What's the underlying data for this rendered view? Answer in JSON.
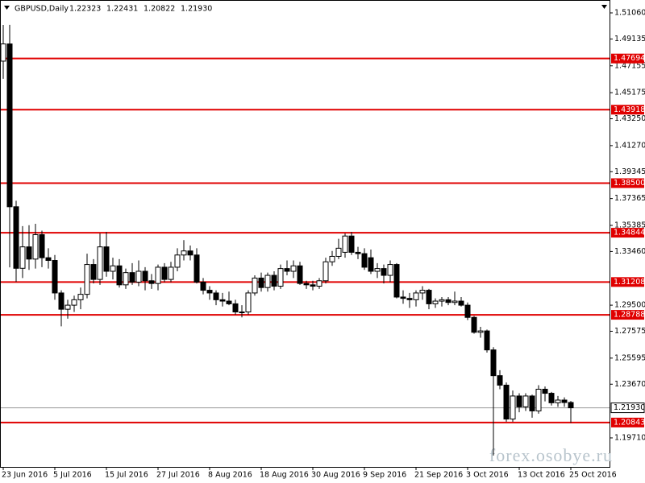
{
  "chart_data": {
    "type": "candlestick",
    "symbol": "GBPUSD,Daily",
    "header_quote": [
      "1.22323",
      "1.22431",
      "1.20822",
      "1.21930"
    ],
    "categories": [
      "23 Jun 2016",
      null,
      null,
      null,
      null,
      null,
      null,
      null,
      "5 Jul 2016",
      null,
      null,
      null,
      null,
      null,
      null,
      null,
      "15 Jul 2016",
      null,
      null,
      null,
      null,
      null,
      null,
      null,
      "27 Jul 2016",
      null,
      null,
      null,
      null,
      null,
      null,
      null,
      "8 Aug 2016",
      null,
      null,
      null,
      null,
      null,
      null,
      null,
      "18 Aug 2016",
      null,
      null,
      null,
      null,
      null,
      null,
      null,
      "30 Aug 2016",
      null,
      null,
      null,
      null,
      null,
      null,
      null,
      "9 Sep 2016",
      null,
      null,
      null,
      null,
      null,
      null,
      null,
      "21 Sep 2016",
      null,
      null,
      null,
      null,
      null,
      null,
      null,
      "3 Oct 2016",
      null,
      null,
      null,
      null,
      null,
      null,
      null,
      "13 Oct 2016",
      null,
      null,
      null,
      null,
      null,
      null,
      null,
      "25 Oct 2016"
    ],
    "open": [
      1.475,
      1.4877,
      1.3676,
      1.3222,
      1.338,
      1.329,
      1.347,
      1.33,
      1.328,
      1.304,
      1.292,
      1.295,
      1.299,
      1.303,
      1.325,
      1.314,
      1.338,
      1.32,
      1.324,
      1.31,
      1.319,
      1.312,
      1.32,
      1.313,
      1.311,
      1.323,
      1.314,
      1.323,
      1.332,
      1.335,
      1.332,
      1.312,
      1.306,
      1.304,
      1.299,
      1.298,
      1.296,
      1.29,
      1.29,
      1.304,
      1.315,
      1.308,
      1.317,
      1.309,
      1.322,
      1.32,
      1.324,
      1.311,
      1.31,
      1.309,
      1.313,
      1.327,
      1.331,
      1.334,
      1.346,
      1.334,
      1.333,
      1.33,
      1.32,
      1.322,
      1.317,
      1.325,
      1.301,
      1.3,
      1.299,
      1.304,
      1.306,
      1.296,
      1.298,
      1.299,
      1.297,
      1.298,
      1.295,
      1.286,
      1.275,
      1.276,
      1.262,
      1.243,
      1.236,
      1.211,
      1.228,
      1.22,
      1.228,
      1.217,
      1.233,
      1.23,
      1.223,
      1.225,
      1.22323
    ],
    "high": [
      1.5017,
      1.5018,
      1.372,
      1.3533,
      1.354,
      1.355,
      1.35,
      1.337,
      1.332,
      1.306,
      1.299,
      1.302,
      1.308,
      1.333,
      1.329,
      1.348,
      1.349,
      1.33,
      1.329,
      1.322,
      1.326,
      1.328,
      1.323,
      1.318,
      1.325,
      1.326,
      1.327,
      1.337,
      1.343,
      1.339,
      1.337,
      1.315,
      1.309,
      1.306,
      1.304,
      1.305,
      1.299,
      1.295,
      1.306,
      1.317,
      1.319,
      1.319,
      1.32,
      1.325,
      1.328,
      1.328,
      1.327,
      1.313,
      1.313,
      1.315,
      1.33,
      1.335,
      1.344,
      1.348,
      1.349,
      1.338,
      1.337,
      1.336,
      1.326,
      1.325,
      1.328,
      1.326,
      1.306,
      1.304,
      1.306,
      1.309,
      1.307,
      1.3,
      1.301,
      1.301,
      1.305,
      1.301,
      1.297,
      1.287,
      1.279,
      1.277,
      1.264,
      1.247,
      1.238,
      1.232,
      1.23,
      1.23,
      1.229,
      1.236,
      1.235,
      1.231,
      1.228,
      1.227,
      1.22431
    ],
    "low": [
      1.462,
      1.3229,
      1.3122,
      1.315,
      1.321,
      1.322,
      1.323,
      1.322,
      1.299,
      1.2794,
      1.285,
      1.29,
      1.292,
      1.3,
      1.311,
      1.31,
      1.316,
      1.314,
      1.308,
      1.307,
      1.31,
      1.309,
      1.306,
      1.307,
      1.306,
      1.312,
      1.312,
      1.32,
      1.328,
      1.328,
      1.311,
      1.303,
      1.299,
      1.295,
      1.294,
      1.295,
      1.288,
      1.286,
      1.288,
      1.302,
      1.305,
      1.305,
      1.306,
      1.307,
      1.317,
      1.315,
      1.31,
      1.307,
      1.306,
      1.307,
      1.311,
      1.324,
      1.329,
      1.33,
      1.332,
      1.329,
      1.321,
      1.318,
      1.315,
      1.311,
      1.312,
      1.3,
      1.296,
      1.293,
      1.294,
      1.299,
      1.292,
      1.293,
      1.294,
      1.295,
      1.295,
      1.294,
      1.284,
      1.274,
      1.271,
      1.26,
      1.1841,
      1.233,
      1.209,
      1.209,
      1.216,
      1.217,
      1.212,
      1.215,
      1.224,
      1.221,
      1.22,
      1.22,
      1.20822
    ],
    "close": [
      1.4877,
      1.3676,
      1.3222,
      1.338,
      1.329,
      1.347,
      1.33,
      1.328,
      1.304,
      1.292,
      1.295,
      1.299,
      1.303,
      1.325,
      1.314,
      1.338,
      1.32,
      1.324,
      1.31,
      1.319,
      1.312,
      1.32,
      1.313,
      1.311,
      1.323,
      1.314,
      1.323,
      1.332,
      1.335,
      1.332,
      1.312,
      1.306,
      1.304,
      1.299,
      1.298,
      1.296,
      1.29,
      1.29,
      1.304,
      1.315,
      1.308,
      1.317,
      1.309,
      1.322,
      1.32,
      1.324,
      1.311,
      1.31,
      1.309,
      1.313,
      1.327,
      1.331,
      1.337,
      1.346,
      1.334,
      1.333,
      1.323,
      1.32,
      1.322,
      1.317,
      1.325,
      1.301,
      1.3,
      1.299,
      1.304,
      1.306,
      1.296,
      1.298,
      1.299,
      1.297,
      1.298,
      1.295,
      1.286,
      1.275,
      1.276,
      1.262,
      1.243,
      1.236,
      1.211,
      1.228,
      1.22,
      1.228,
      1.217,
      1.233,
      1.23,
      1.223,
      1.225,
      1.2232,
      1.2193
    ],
    "up_color": "#ffffff",
    "down_color": "#000000",
    "ylim": [
      1.1757,
      1.5201
    ],
    "yticks": [
      {
        "value": 1.5106,
        "label": "1.51060"
      },
      {
        "value": 1.49135,
        "label": "1.49135"
      },
      {
        "value": 1.47155,
        "label": "1.47155"
      },
      {
        "value": 1.45175,
        "label": "1.45175"
      },
      {
        "value": 1.4325,
        "label": "1.43250"
      },
      {
        "value": 1.4127,
        "label": "1.41270"
      },
      {
        "value": 1.39345,
        "label": "1.39345"
      },
      {
        "value": 1.37365,
        "label": "1.37365"
      },
      {
        "value": 1.35385,
        "label": "1.35385"
      },
      {
        "value": 1.3346,
        "label": "1.33460"
      },
      {
        "value": 1.295,
        "label": "1.29500"
      },
      {
        "value": 1.27575,
        "label": "1.27575"
      },
      {
        "value": 1.25595,
        "label": "1.25595"
      },
      {
        "value": 1.2367,
        "label": "1.23670"
      },
      {
        "value": 1.1971,
        "label": "1.19710"
      }
    ],
    "levels": [
      {
        "value": 1.47694,
        "label": "1.47694"
      },
      {
        "value": 1.43918,
        "label": "1.43918"
      },
      {
        "value": 1.385,
        "label": "1.38500"
      },
      {
        "value": 1.34844,
        "label": "1.34844"
      },
      {
        "value": 1.31208,
        "label": "1.31208"
      },
      {
        "value": 1.28788,
        "label": "1.28788"
      },
      {
        "value": 1.20843,
        "label": "1.20843"
      }
    ],
    "level_color": "#e00000",
    "current_price": {
      "value": 1.2193,
      "label": "1.21930"
    },
    "watermark": "forex.osobye.ru"
  }
}
